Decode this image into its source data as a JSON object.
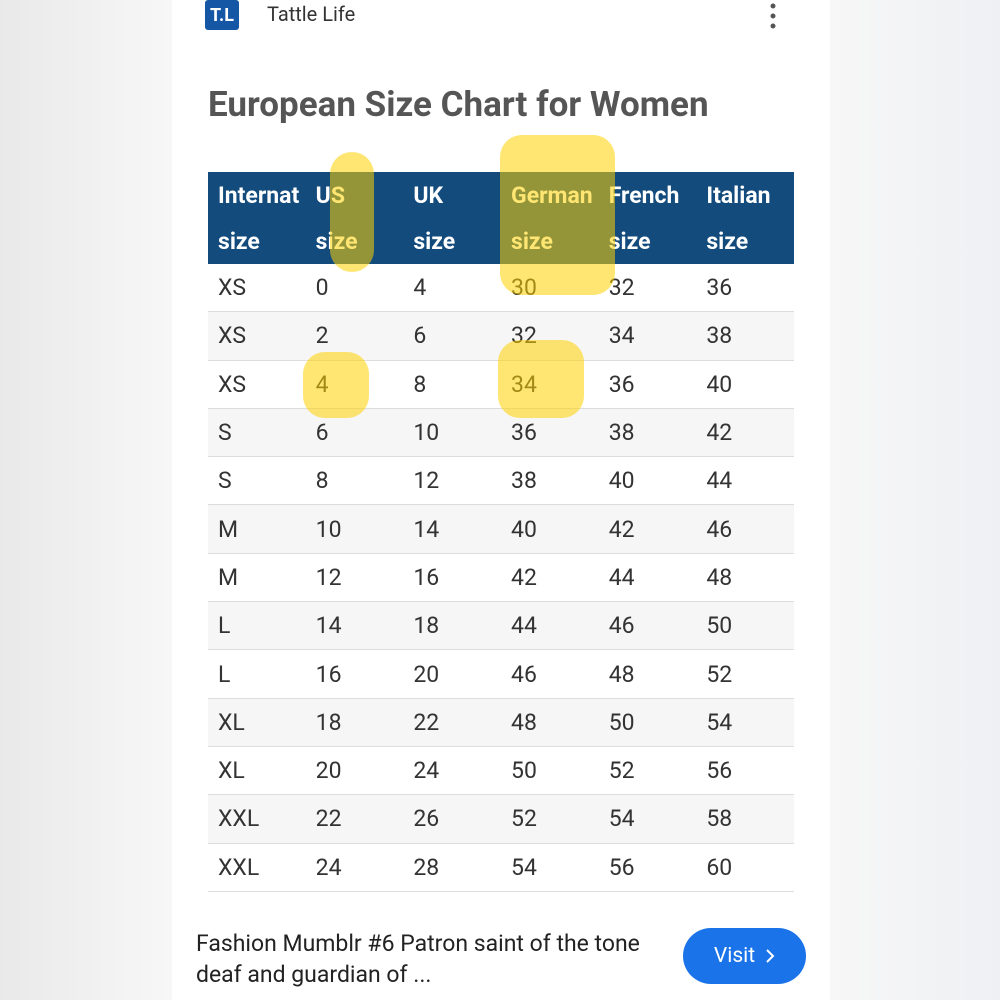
{
  "header": {
    "logo": "T.L",
    "source": "Tattle Life"
  },
  "title": "European Size Chart for Women",
  "table": {
    "columns": [
      [
        "Internat",
        "size"
      ],
      [
        "US",
        "size"
      ],
      [
        "UK",
        "size"
      ],
      [
        "German",
        "size"
      ],
      [
        "French",
        "size"
      ],
      [
        "Italian",
        "size"
      ]
    ],
    "rows": [
      [
        "XS",
        0,
        4,
        30,
        32,
        36
      ],
      [
        "XS",
        2,
        6,
        32,
        34,
        38
      ],
      [
        "XS",
        4,
        8,
        34,
        36,
        40
      ],
      [
        "S",
        6,
        10,
        36,
        38,
        42
      ],
      [
        "S",
        8,
        12,
        38,
        40,
        44
      ],
      [
        "M",
        10,
        14,
        40,
        42,
        46
      ],
      [
        "M",
        12,
        16,
        42,
        44,
        48
      ],
      [
        "L",
        14,
        18,
        44,
        46,
        50
      ],
      [
        "L",
        16,
        20,
        46,
        48,
        52
      ],
      [
        "XL",
        18,
        22,
        48,
        50,
        54
      ],
      [
        "XL",
        20,
        24,
        50,
        52,
        56
      ],
      [
        "XXL",
        22,
        26,
        52,
        54,
        58
      ],
      [
        "XXL",
        24,
        28,
        54,
        56,
        60
      ]
    ]
  },
  "footer": {
    "caption": "Fashion Mumblr #6 Patron saint of the tone deaf and guardian of ...",
    "button": "Visit"
  }
}
